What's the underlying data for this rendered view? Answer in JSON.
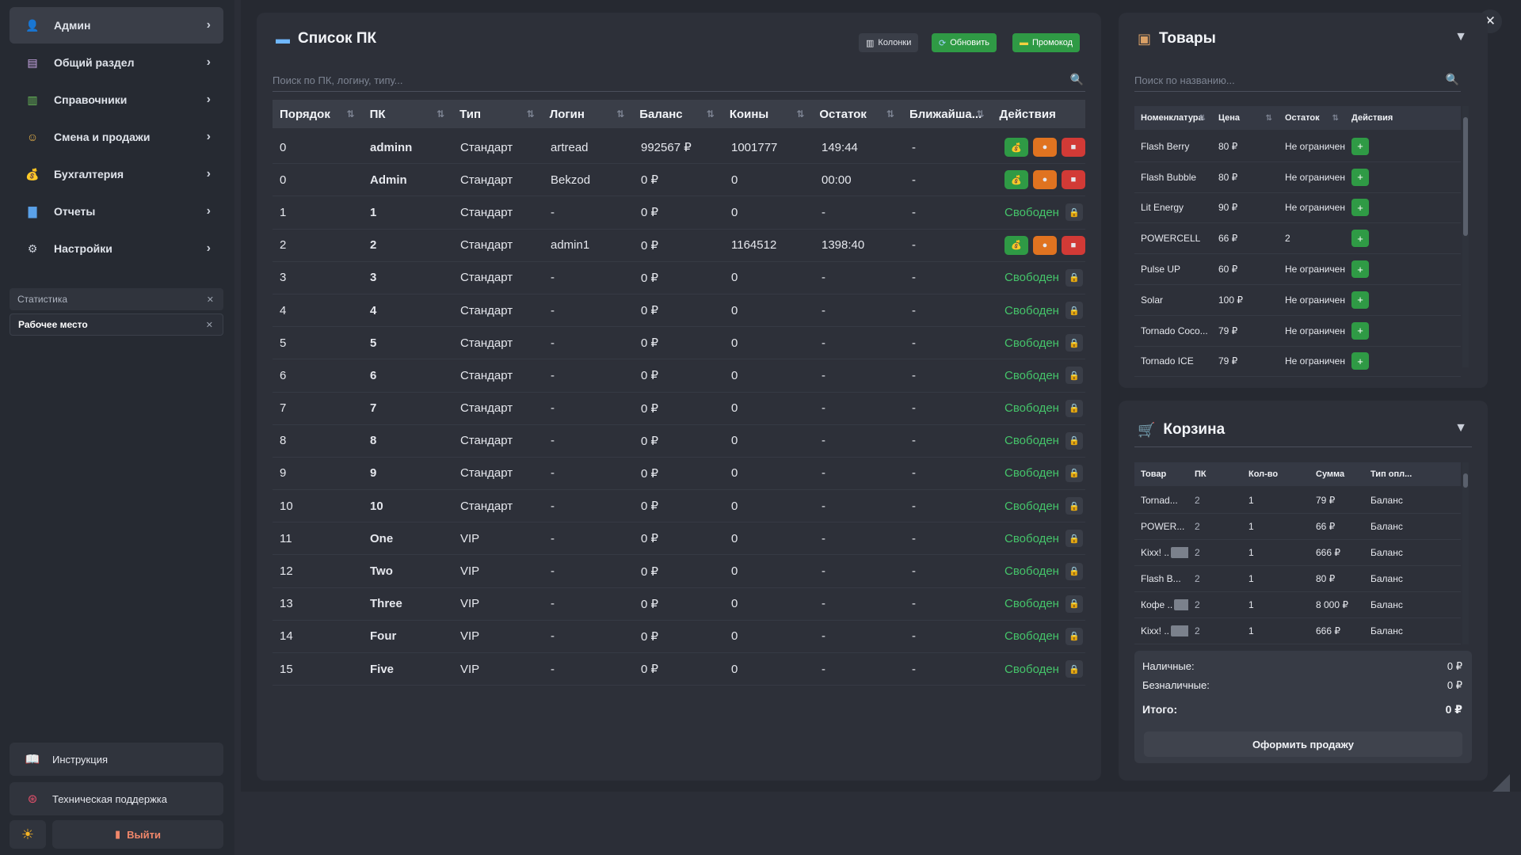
{
  "sidebar": {
    "items": [
      {
        "label": "Админ",
        "icon": "user-icon",
        "active": true
      },
      {
        "label": "Общий раздел",
        "icon": "document-icon"
      },
      {
        "label": "Справочники",
        "icon": "books-icon"
      },
      {
        "label": "Смена и продажи",
        "icon": "cashier-icon"
      },
      {
        "label": "Бухгалтерия",
        "icon": "money-bag-icon"
      },
      {
        "label": "Отчеты",
        "icon": "bar-chart-icon"
      },
      {
        "label": "Настройки",
        "icon": "gear-icon"
      }
    ],
    "open_tabs": [
      "Статистика",
      "Рабочее место"
    ],
    "instruction": "Инструкция",
    "support": "Техническая поддержка",
    "logout": "Выйти"
  },
  "pc_list": {
    "title": "Список ПК",
    "buttons": {
      "columns": "Колонки",
      "refresh": "Обновить",
      "promo": "Промокод"
    },
    "search_placeholder": "Поиск по ПК, логину, типу...",
    "columns": [
      "Порядок",
      "ПК",
      "Тип",
      "Логин",
      "Баланс",
      "Коины",
      "Остаток",
      "Ближайша...",
      "Действия"
    ],
    "free_label": "Свободен",
    "rows": [
      {
        "order": "0",
        "pc": "adminn",
        "type": "Стандарт",
        "login": "artread",
        "balance": "992567 ₽",
        "coins": "1001777",
        "rest": "149:44",
        "next": "-",
        "busy": true
      },
      {
        "order": "0",
        "pc": "Admin",
        "type": "Стандарт",
        "login": "Bekzod",
        "balance": "0 ₽",
        "coins": "0",
        "rest": "00:00",
        "next": "-",
        "busy": true
      },
      {
        "order": "1",
        "pc": "1",
        "type": "Стандарт",
        "login": "-",
        "balance": "0 ₽",
        "coins": "0",
        "rest": "-",
        "next": "-",
        "busy": false
      },
      {
        "order": "2",
        "pc": "2",
        "type": "Стандарт",
        "login": "admin1",
        "balance": "0 ₽",
        "coins": "1164512",
        "rest": "1398:40",
        "next": "-",
        "busy": true
      },
      {
        "order": "3",
        "pc": "3",
        "type": "Стандарт",
        "login": "-",
        "balance": "0 ₽",
        "coins": "0",
        "rest": "-",
        "next": "-",
        "busy": false
      },
      {
        "order": "4",
        "pc": "4",
        "type": "Стандарт",
        "login": "-",
        "balance": "0 ₽",
        "coins": "0",
        "rest": "-",
        "next": "-",
        "busy": false
      },
      {
        "order": "5",
        "pc": "5",
        "type": "Стандарт",
        "login": "-",
        "balance": "0 ₽",
        "coins": "0",
        "rest": "-",
        "next": "-",
        "busy": false
      },
      {
        "order": "6",
        "pc": "6",
        "type": "Стандарт",
        "login": "-",
        "balance": "0 ₽",
        "coins": "0",
        "rest": "-",
        "next": "-",
        "busy": false
      },
      {
        "order": "7",
        "pc": "7",
        "type": "Стандарт",
        "login": "-",
        "balance": "0 ₽",
        "coins": "0",
        "rest": "-",
        "next": "-",
        "busy": false
      },
      {
        "order": "8",
        "pc": "8",
        "type": "Стандарт",
        "login": "-",
        "balance": "0 ₽",
        "coins": "0",
        "rest": "-",
        "next": "-",
        "busy": false
      },
      {
        "order": "9",
        "pc": "9",
        "type": "Стандарт",
        "login": "-",
        "balance": "0 ₽",
        "coins": "0",
        "rest": "-",
        "next": "-",
        "busy": false
      },
      {
        "order": "10",
        "pc": "10",
        "type": "Стандарт",
        "login": "-",
        "balance": "0 ₽",
        "coins": "0",
        "rest": "-",
        "next": "-",
        "busy": false
      },
      {
        "order": "11",
        "pc": "One",
        "type": "VIP",
        "login": "-",
        "balance": "0 ₽",
        "coins": "0",
        "rest": "-",
        "next": "-",
        "busy": false
      },
      {
        "order": "12",
        "pc": "Two",
        "type": "VIP",
        "login": "-",
        "balance": "0 ₽",
        "coins": "0",
        "rest": "-",
        "next": "-",
        "busy": false
      },
      {
        "order": "13",
        "pc": "Three",
        "type": "VIP",
        "login": "-",
        "balance": "0 ₽",
        "coins": "0",
        "rest": "-",
        "next": "-",
        "busy": false
      },
      {
        "order": "14",
        "pc": "Four",
        "type": "VIP",
        "login": "-",
        "balance": "0 ₽",
        "coins": "0",
        "rest": "-",
        "next": "-",
        "busy": false
      },
      {
        "order": "15",
        "pc": "Five",
        "type": "VIP",
        "login": "-",
        "balance": "0 ₽",
        "coins": "0",
        "rest": "-",
        "next": "-",
        "busy": false
      }
    ]
  },
  "goods": {
    "title": "Товары",
    "search_placeholder": "Поиск по названию...",
    "columns": [
      "Номенклатура",
      "Цена",
      "Остаток",
      "Действия"
    ],
    "rows": [
      {
        "name": "Flash Berry",
        "price": "80 ₽",
        "stock": "Не ограничено"
      },
      {
        "name": "Flash Bubble",
        "price": "80 ₽",
        "stock": "Не ограничено"
      },
      {
        "name": "Lit Energy",
        "price": "90 ₽",
        "stock": "Не ограничено"
      },
      {
        "name": "POWERCELL",
        "price": "66 ₽",
        "stock": "2"
      },
      {
        "name": "Pulse UP",
        "price": "60 ₽",
        "stock": "Не ограничено"
      },
      {
        "name": "Solar",
        "price": "100 ₽",
        "stock": "Не ограничено"
      },
      {
        "name": "Tornado Coco...",
        "price": "79 ₽",
        "stock": "Не ограничено"
      },
      {
        "name": "Tornado ICE",
        "price": "79 ₽",
        "stock": "Не ограничено"
      }
    ]
  },
  "cart": {
    "title": "Корзина",
    "columns": [
      "Товар",
      "ПК",
      "Кол-во",
      "Сумма",
      "Тип опл..."
    ],
    "rows": [
      {
        "item": "Tornad...",
        "blurred": false,
        "pc": "2",
        "qty": "1",
        "sum": "79 ₽",
        "pay": "Баланс"
      },
      {
        "item": "POWER...",
        "blurred": false,
        "pc": "2",
        "qty": "1",
        "sum": "66 ₽",
        "pay": "Баланс"
      },
      {
        "item": "Kixx! ..",
        "blurred": true,
        "pc": "2",
        "qty": "1",
        "sum": "666 ₽",
        "pay": "Баланс"
      },
      {
        "item": "Flash B...",
        "blurred": false,
        "pc": "2",
        "qty": "1",
        "sum": "80 ₽",
        "pay": "Баланс"
      },
      {
        "item": "Кофе ..",
        "blurred": true,
        "pc": "2",
        "qty": "1",
        "sum": "8 000 ₽",
        "pay": "Баланс"
      },
      {
        "item": "Kixx! ..",
        "blurred": true,
        "pc": "2",
        "qty": "1",
        "sum": "666 ₽",
        "pay": "Баланс"
      }
    ],
    "cash_label": "Наличные:",
    "cash_value": "0 ₽",
    "card_label": "Безналичные:",
    "card_value": "0 ₽",
    "total_label": "Итого:",
    "total_value": "0 ₽",
    "checkout": "Оформить продажу"
  }
}
